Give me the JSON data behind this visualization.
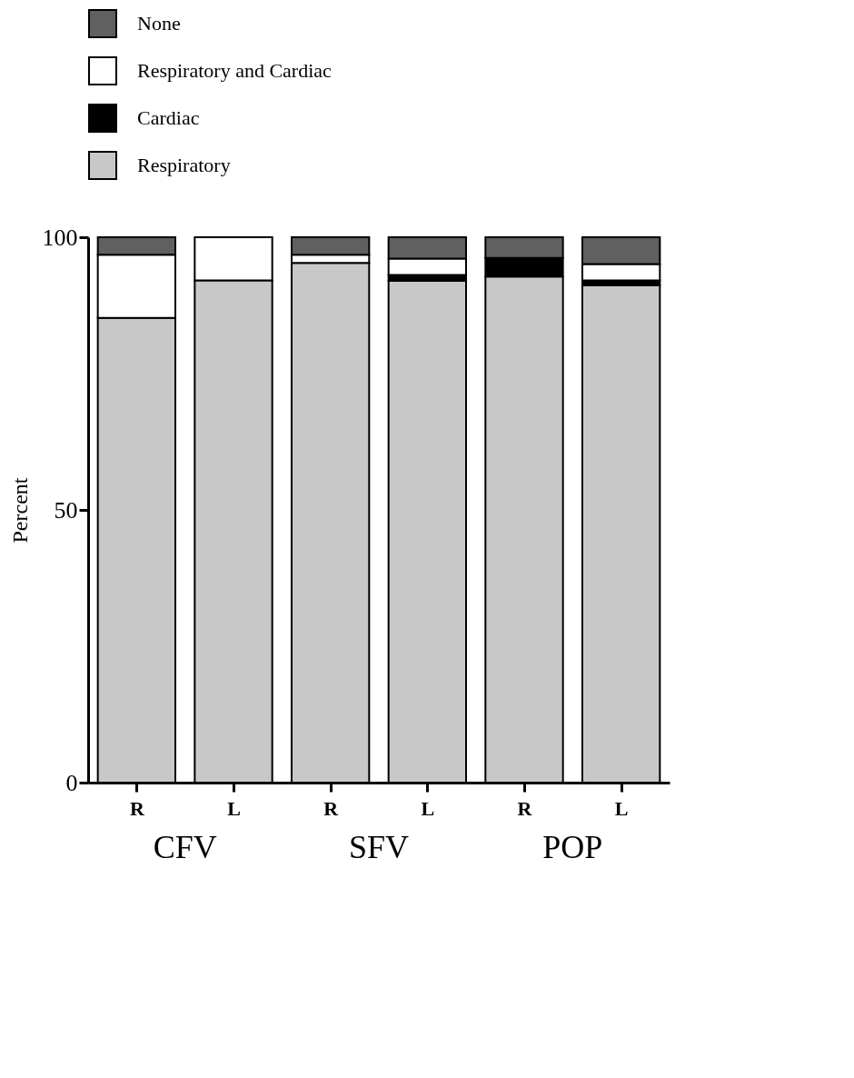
{
  "chart_data": {
    "type": "bar",
    "stacked": true,
    "ylabel": "Percent",
    "categories": [
      "R",
      "L",
      "R",
      "L",
      "R",
      "L"
    ],
    "series": [
      {
        "name": "Respiratory",
        "color": "#c8c8c8",
        "values": [
          85.2,
          92.1,
          95.3,
          92.0,
          92.8,
          91.2
        ]
      },
      {
        "name": "Cardiac",
        "color": "#000000",
        "values": [
          0,
          0,
          0,
          1.1,
          3.4,
          0.9
        ]
      },
      {
        "name": "Respiratory and Cardiac",
        "color": "#ffffff",
        "values": [
          11.6,
          7.9,
          1.5,
          3.0,
          0,
          3.0
        ]
      },
      {
        "name": "None",
        "color": "#606060",
        "values": [
          3.2,
          0,
          3.2,
          3.9,
          3.8,
          4.9
        ]
      }
    ],
    "ylim": [
      0,
      100
    ],
    "yticks": [
      0,
      50,
      100
    ],
    "grid": false,
    "legend": "top",
    "annotations": [
      "CFV",
      "SFV",
      "POP"
    ]
  }
}
